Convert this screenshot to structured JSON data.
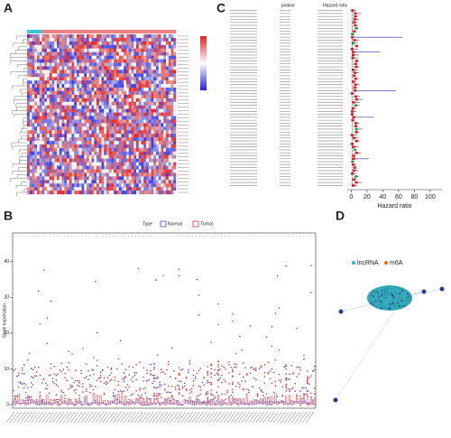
{
  "chart_data": [
    {
      "type": "heatmap",
      "panel": "A"
    },
    {
      "type": "forest",
      "panel": "C",
      "columns": [
        "pvalue",
        "Hazard ratio"
      ],
      "xlabel": "Hazard ratio",
      "xlim": [
        -5,
        115
      ],
      "xticks": [
        0,
        20,
        40,
        60,
        80,
        100
      ]
    },
    {
      "type": "box",
      "panel": "B",
      "ylabel": "Gene expression",
      "legend_title": "Type",
      "series": [
        {
          "name": "Normal",
          "color": "#4a4ae0"
        },
        {
          "name": "Tumor",
          "color": "#e03030"
        }
      ],
      "ylim": [
        -1,
        48
      ],
      "yticks": [
        0,
        10,
        20,
        30,
        40
      ]
    },
    {
      "type": "network",
      "panel": "D",
      "series": [
        {
          "name": "lncRNA",
          "color": "#3ab0c8"
        },
        {
          "name": "m6A",
          "color": "#e07020"
        }
      ]
    }
  ]
}
